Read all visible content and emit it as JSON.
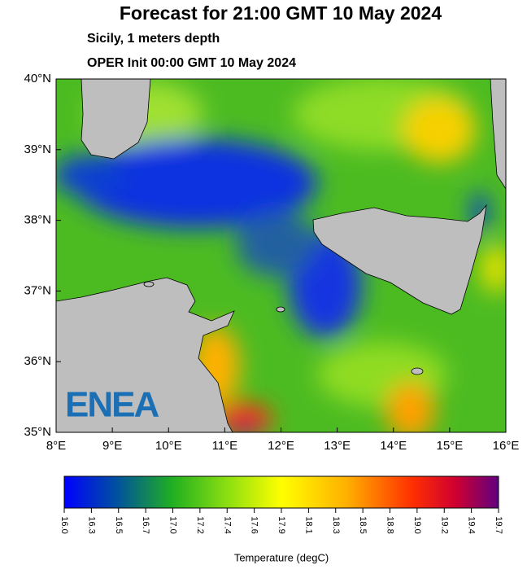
{
  "map": {
    "title": "Forecast for 21:00 GMT  10 May 2024",
    "subtitle": "Sicily, 1 meters depth",
    "init": "OPER Init 00:00 GMT  10 May 2024",
    "lon_ticks": [
      {
        "value": 8,
        "label": "8°E"
      },
      {
        "value": 9,
        "label": "9°E"
      },
      {
        "value": 10,
        "label": "10°E"
      },
      {
        "value": 11,
        "label": "11°E"
      },
      {
        "value": 12,
        "label": "12°E"
      },
      {
        "value": 13,
        "label": "13°E"
      },
      {
        "value": 14,
        "label": "14°E"
      },
      {
        "value": 15,
        "label": "15°E"
      },
      {
        "value": 16,
        "label": "16°E"
      }
    ],
    "lat_ticks": [
      {
        "value": 40,
        "label": "40°N"
      },
      {
        "value": 39,
        "label": "39°N"
      },
      {
        "value": 38,
        "label": "38°N"
      },
      {
        "value": 37,
        "label": "37°N"
      },
      {
        "value": 36,
        "label": "36°N"
      },
      {
        "value": 35,
        "label": "35°N"
      }
    ],
    "colorbar": {
      "ticks": [
        {
          "value": 16,
          "label": "16.0"
        },
        16.3,
        16.5,
        16.7,
        {
          "value": 17,
          "label": "17.0"
        },
        17.2,
        17.4,
        17.6,
        17.9,
        18.1,
        18.3,
        18.5,
        18.8,
        {
          "value": 19,
          "label": "19.0"
        },
        19.2,
        19.4,
        19.7
      ],
      "label": "Temperature (degC)"
    },
    "logo": "ENEA"
  }
}
